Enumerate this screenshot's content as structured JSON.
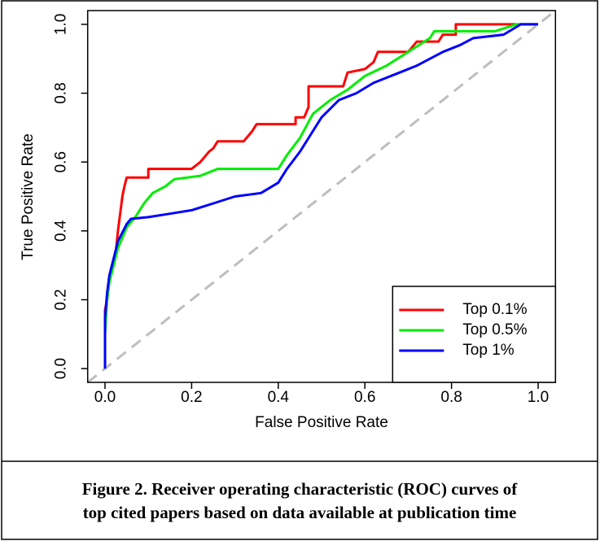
{
  "chart_data": {
    "type": "line",
    "xlabel": "False Positive Rate",
    "ylabel": "True Positive Rate",
    "xlim": [
      -0.04,
      1.04
    ],
    "ylim": [
      -0.04,
      1.04
    ],
    "xticks": [
      {
        "value": 0,
        "label": "0.0"
      },
      0.2,
      0.4,
      0.6,
      0.8,
      {
        "value": 1,
        "label": "1.0"
      }
    ],
    "yticks": [
      {
        "value": 0,
        "label": "0.0"
      },
      0.2,
      0.4,
      0.6,
      0.8,
      {
        "value": 1,
        "label": "1.0"
      }
    ],
    "legend": "bottom-right",
    "series": [
      {
        "name": "Top 0.1%",
        "color": "#ff0000",
        "x": [
          0,
          0,
          0.005,
          0.01,
          0.02,
          0.025,
          0.03,
          0.035,
          0.04,
          0.045,
          0.05,
          0.1,
          0.1,
          0.2,
          0.22,
          0.24,
          0.25,
          0.26,
          0.32,
          0.34,
          0.35,
          0.44,
          0.44,
          0.46,
          0.47,
          0.47,
          0.55,
          0.56,
          0.6,
          0.62,
          0.63,
          0.7,
          0.72,
          0.77,
          0.78,
          0.81,
          0.81,
          1
        ],
        "values": [
          0,
          0.17,
          0.2,
          0.26,
          0.3,
          0.34,
          0.4,
          0.45,
          0.5,
          0.53,
          0.555,
          0.555,
          0.58,
          0.58,
          0.6,
          0.63,
          0.64,
          0.66,
          0.66,
          0.69,
          0.71,
          0.71,
          0.73,
          0.73,
          0.76,
          0.82,
          0.82,
          0.86,
          0.87,
          0.89,
          0.92,
          0.92,
          0.95,
          0.95,
          0.97,
          0.97,
          1,
          1
        ]
      },
      {
        "name": "Top 0.5%",
        "color": "#00ee00",
        "x": [
          0,
          0,
          0.005,
          0.01,
          0.02,
          0.03,
          0.05,
          0.07,
          0.09,
          0.11,
          0.14,
          0.16,
          0.22,
          0.26,
          0.4,
          0.42,
          0.45,
          0.48,
          0.52,
          0.56,
          0.6,
          0.65,
          0.7,
          0.75,
          0.76,
          0.9,
          0.95,
          1
        ],
        "values": [
          0,
          0.1,
          0.2,
          0.25,
          0.3,
          0.35,
          0.41,
          0.44,
          0.48,
          0.51,
          0.53,
          0.55,
          0.56,
          0.58,
          0.58,
          0.62,
          0.67,
          0.74,
          0.78,
          0.81,
          0.85,
          0.88,
          0.92,
          0.96,
          0.98,
          0.98,
          1,
          1
        ]
      },
      {
        "name": "Top 1%",
        "color": "#0000ff",
        "x": [
          0,
          0,
          0.005,
          0.01,
          0.02,
          0.03,
          0.05,
          0.06,
          0.1,
          0.15,
          0.2,
          0.25,
          0.3,
          0.36,
          0.4,
          0.42,
          0.45,
          0.48,
          0.5,
          0.54,
          0.58,
          0.62,
          0.68,
          0.72,
          0.78,
          0.82,
          0.85,
          0.92,
          0.96,
          1
        ],
        "values": [
          0,
          0.15,
          0.22,
          0.27,
          0.32,
          0.37,
          0.42,
          0.435,
          0.44,
          0.45,
          0.46,
          0.48,
          0.5,
          0.51,
          0.54,
          0.58,
          0.63,
          0.69,
          0.73,
          0.78,
          0.8,
          0.83,
          0.86,
          0.88,
          0.92,
          0.94,
          0.96,
          0.97,
          1,
          1
        ]
      }
    ]
  },
  "caption": [
    "Figure 2. Receiver operating characteristic (ROC) curves of",
    "top cited papers based on data available at publication time"
  ]
}
